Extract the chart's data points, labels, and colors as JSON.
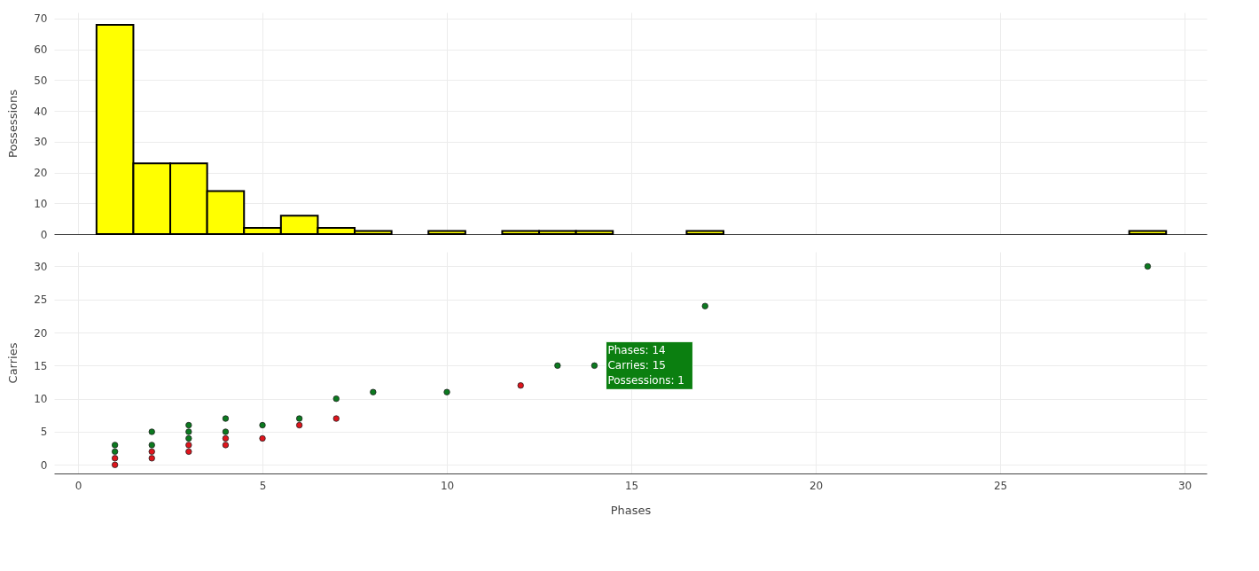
{
  "chart_data": [
    {
      "type": "histogram",
      "ylabel": "Possessions",
      "color": "#ffff00",
      "bins": [
        0.5,
        1.5,
        2.5,
        3.5,
        4.5,
        5.5,
        6.5,
        7.5,
        8.5,
        9.5,
        10.5,
        11.5,
        12.5,
        13.5,
        14.5,
        15.5,
        16.5,
        17.5,
        18.5,
        19.5,
        20.5,
        21.5,
        22.5,
        23.5,
        24.5,
        25.5,
        26.5,
        27.5,
        28.5,
        29.5
      ],
      "values": [
        68,
        23,
        23,
        14,
        2,
        6,
        2,
        1,
        0,
        1,
        0,
        1,
        1,
        1,
        0,
        0,
        1,
        0,
        0,
        0,
        0,
        0,
        0,
        0,
        0,
        0,
        0,
        0,
        1
      ],
      "xlim": [
        -0.65,
        30.6
      ],
      "xticks": [
        0,
        5,
        10,
        15,
        20,
        25,
        30
      ],
      "ylim": [
        0,
        72
      ],
      "yticks": [
        0,
        10,
        20,
        30,
        40,
        50,
        60,
        70
      ],
      "grid": true,
      "tick_labels": "y"
    },
    {
      "type": "scatter",
      "xlabel": "Phases",
      "ylabel": "Carries",
      "marker": "circle",
      "series": [
        {
          "color": "#0b7a1f",
          "x": [
            1,
            1,
            2,
            2,
            3,
            3,
            3,
            4,
            4,
            5,
            6,
            7,
            8,
            10,
            13,
            14,
            17,
            29
          ],
          "values": [
            3,
            2,
            5,
            3,
            6,
            5,
            4,
            7,
            5,
            6,
            7,
            10,
            11,
            11,
            15,
            15,
            24,
            30
          ]
        },
        {
          "color": "#e0141c",
          "x": [
            1,
            1,
            2,
            2,
            3,
            3,
            4,
            4,
            5,
            6,
            7,
            12
          ],
          "values": [
            1,
            0,
            2,
            1,
            3,
            2,
            4,
            3,
            4,
            6,
            7,
            12
          ]
        }
      ],
      "annotations": [
        {
          "text": "Phases:  14\nCarries:  15\nPossessions:  1",
          "x": 14,
          "y": 15
        }
      ],
      "xlim": [
        -0.65,
        30.6
      ],
      "xticks": [
        0,
        5,
        10,
        15,
        20,
        25,
        30
      ],
      "ylim": [
        -1.3,
        32.2
      ],
      "yticks": [
        0,
        5,
        10,
        15,
        20,
        25,
        30
      ],
      "grid": true
    }
  ]
}
